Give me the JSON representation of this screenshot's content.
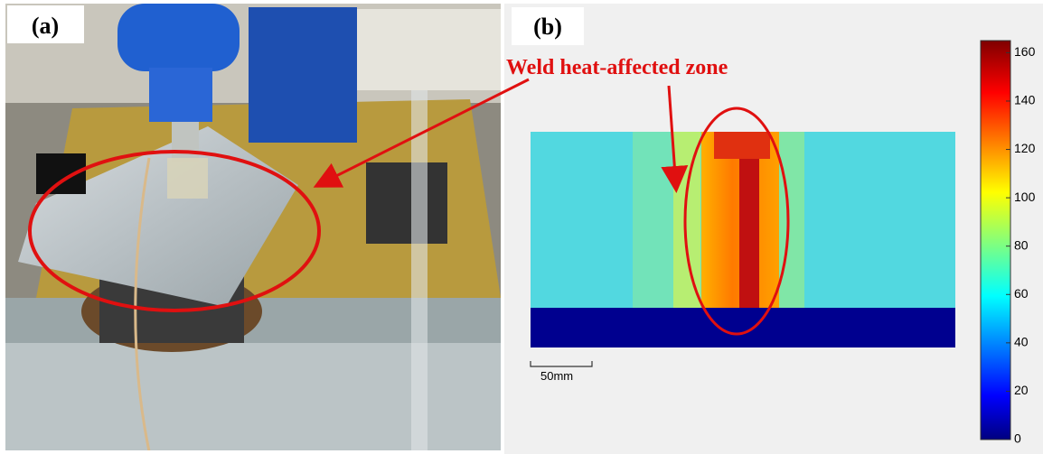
{
  "panels": [
    {
      "label": "(a)"
    },
    {
      "label": "(b)",
      "annotation": "Weld heat-affected zone",
      "scale_bar": "50mm",
      "colorbar": {
        "lim": [
          0,
          165
        ],
        "ticks": [
          0,
          20,
          40,
          60,
          80,
          100,
          120,
          140,
          160
        ]
      }
    }
  ]
}
